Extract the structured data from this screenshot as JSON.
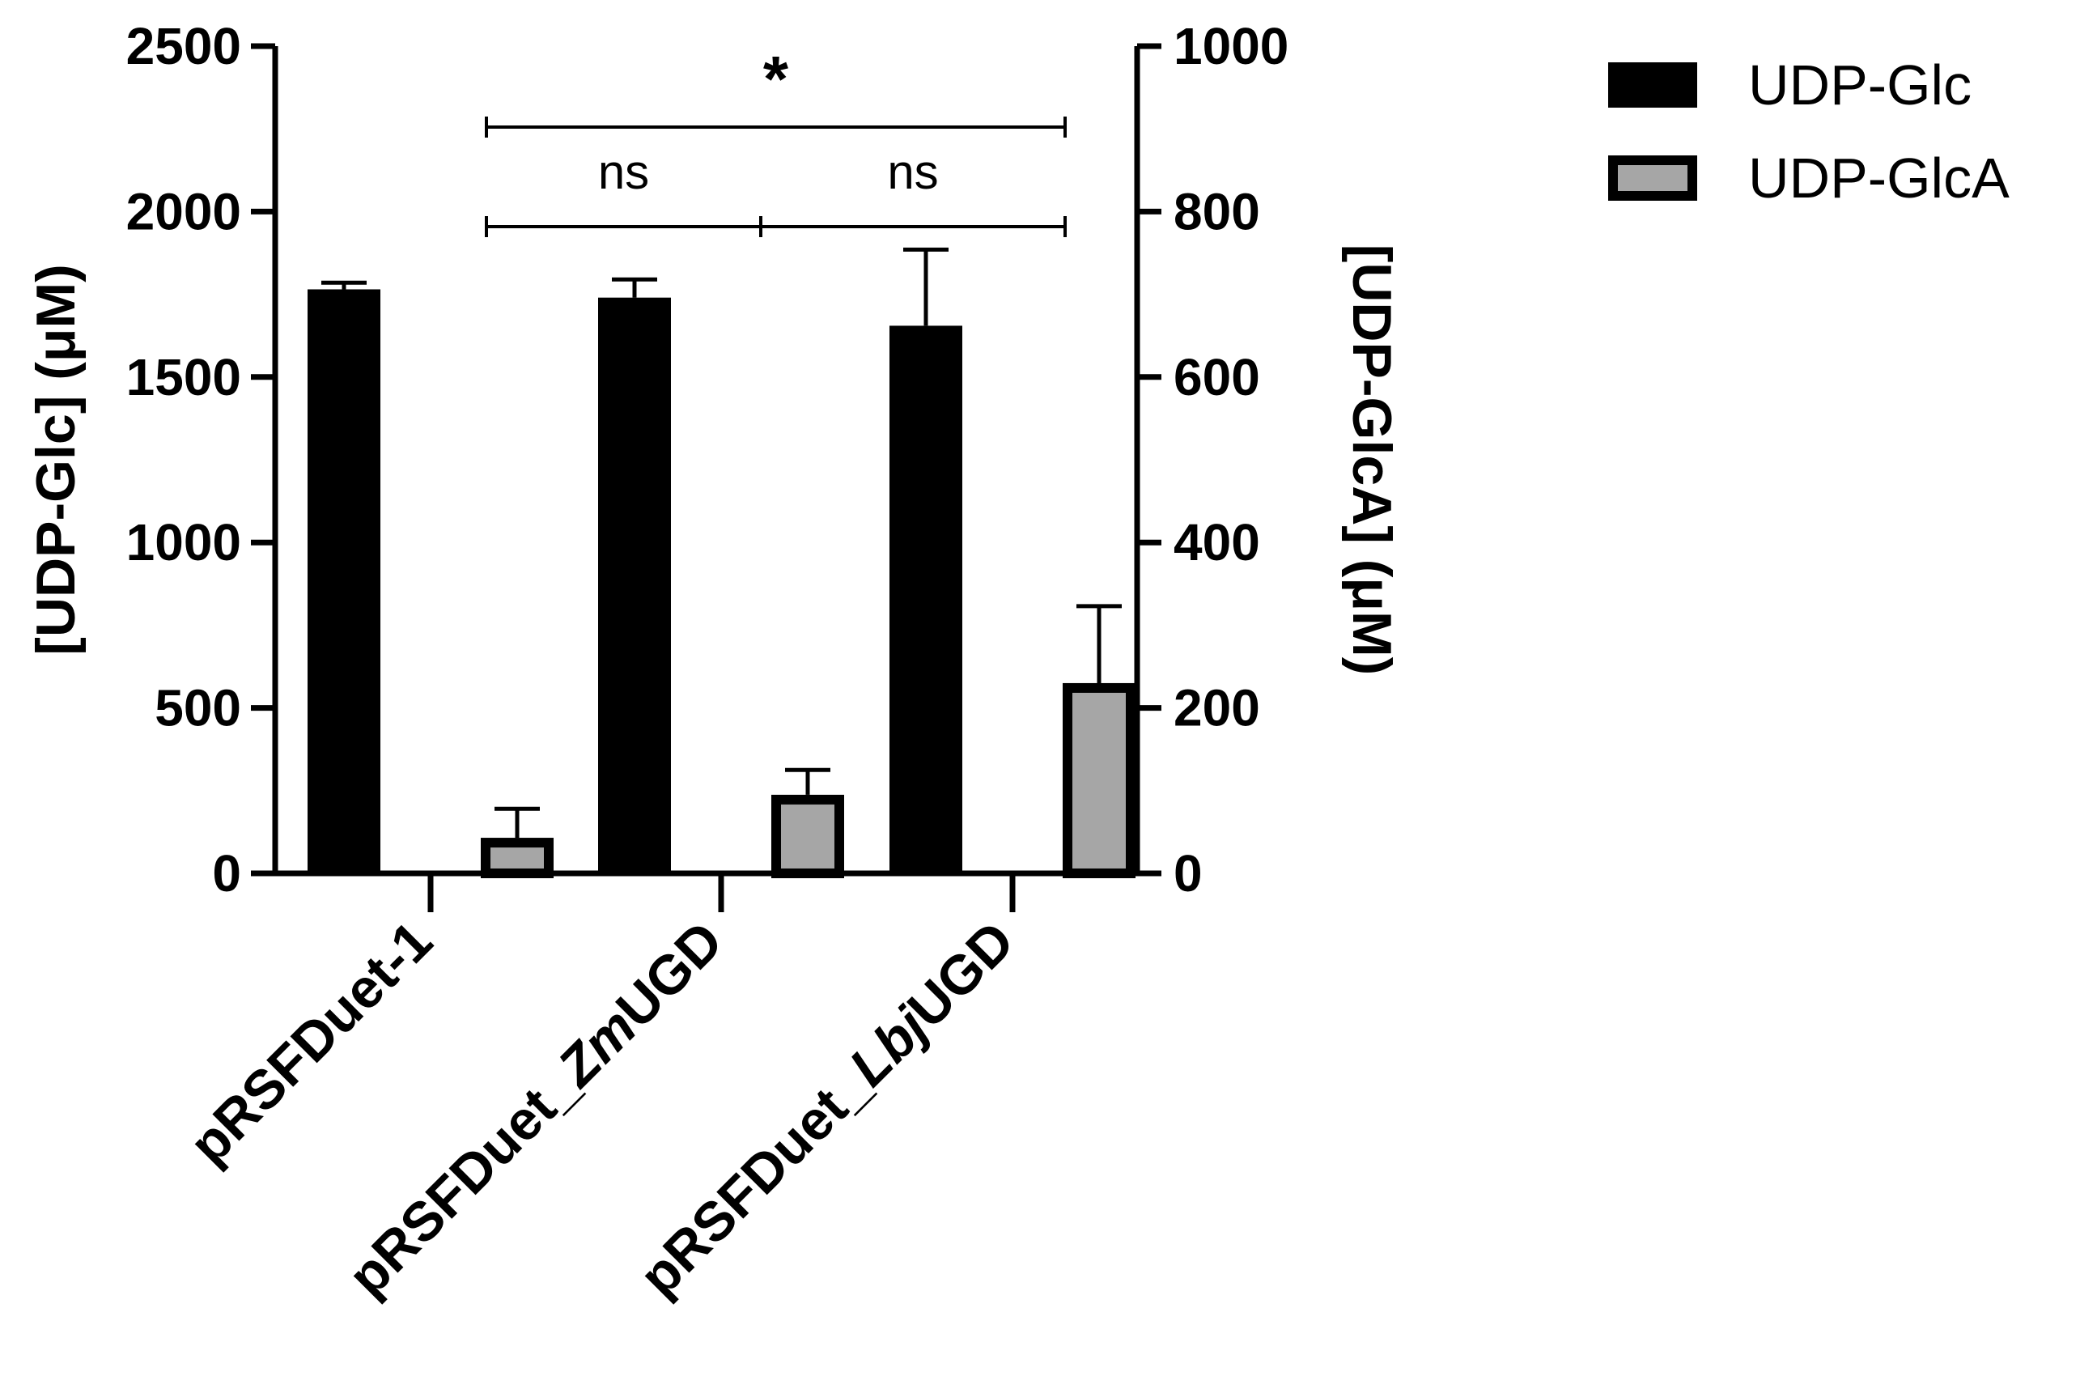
{
  "chart_data": {
    "type": "bar",
    "title": "",
    "categories": [
      "pRSFDuet-1",
      "pRSFDuet_ZmUGD",
      "pRSFDuet_LbjUGD"
    ],
    "categories_parts": [
      [
        {
          "t": "pRSFDuet-1",
          "i": false
        }
      ],
      [
        {
          "t": "pRSFDuet_",
          "i": false
        },
        {
          "t": "Zm",
          "i": true
        },
        {
          "t": "UGD",
          "i": false
        }
      ],
      [
        {
          "t": "pRSFDuet_",
          "i": false
        },
        {
          "t": "Lbj",
          "i": true
        },
        {
          "t": "UGD",
          "i": false
        }
      ]
    ],
    "series": [
      {
        "name": "UDP-Glc",
        "axis": "left",
        "values": [
          1765,
          1740,
          1655
        ],
        "errors": [
          20,
          55,
          230
        ],
        "color": "#000000"
      },
      {
        "name": "UDP-GlcA",
        "axis": "right",
        "values": [
          43,
          95,
          230
        ],
        "errors": [
          35,
          30,
          93
        ],
        "color": "#a6a6a6"
      }
    ],
    "y_left": {
      "label": "[UDP-Glc] (μM)",
      "range": [
        0,
        2500
      ],
      "ticks": [
        "0",
        "500",
        "1000",
        "1500",
        "2000",
        "2500"
      ]
    },
    "y_right": {
      "label": "[UDP-GlcA] (μM)",
      "range": [
        0,
        1000
      ],
      "ticks": [
        "0",
        "200",
        "400",
        "600",
        "800",
        "1000"
      ]
    },
    "legend": {
      "placement": "top-right"
    },
    "grid": false,
    "significance": [
      {
        "label": "ns",
        "from": 0,
        "to": 1
      },
      {
        "label": "ns",
        "from": 1,
        "to": 2
      },
      {
        "label": "*",
        "from": 0,
        "to": 2
      }
    ]
  }
}
